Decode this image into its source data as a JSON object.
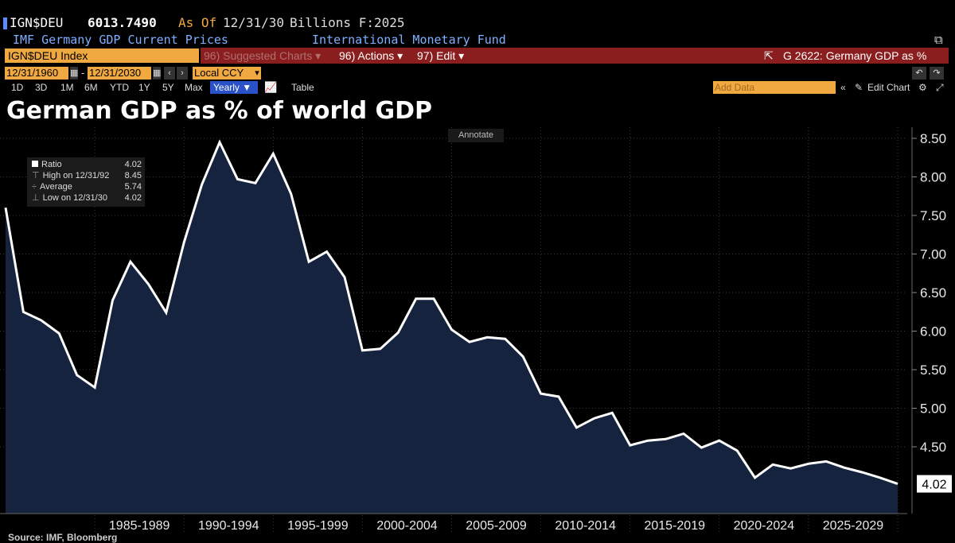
{
  "header": {
    "ticker": "IGN$DEU",
    "value": "6013.7490",
    "as_of_label": "As Of",
    "as_of_date": "12/31/30",
    "units": "Billions F:2025",
    "description": "IMF Germany GDP Current Prices",
    "source_name": "International Monetary Fund"
  },
  "toolbar": {
    "security": "IGN$DEU Index",
    "suggested": "96) Suggested Charts ▾",
    "actions": "96) Actions ▾",
    "edit": "97) Edit ▾",
    "chart_name": "G 2622: Germany GDP as %"
  },
  "dates": {
    "start": "12/31/1960",
    "end": "12/31/2030",
    "currency": "Local CCY"
  },
  "ranges": [
    "1D",
    "3D",
    "1M",
    "6M",
    "YTD",
    "1Y",
    "5Y",
    "Max"
  ],
  "period": "Yearly ▼",
  "table_label": "Table",
  "add_data": "Add Data",
  "edit_chart": "Edit Chart",
  "annotate": "Annotate",
  "legend": {
    "ratio_label": "Ratio",
    "ratio_value": "4.02",
    "high_label": "High on 12/31/92",
    "high_value": "8.45",
    "avg_label": "Average",
    "avg_value": "5.74",
    "low_label": "Low on 12/31/30",
    "low_value": "4.02"
  },
  "source": "Source: IMF, Bloomberg",
  "colors": {
    "line": "#ffffff",
    "area": "#15233e",
    "accent": "#f0a840",
    "redbar": "#8a1e1e"
  },
  "chart_data": {
    "type": "area",
    "title": "German GDP as % of world GDP",
    "x": [
      1980,
      1981,
      1982,
      1983,
      1984,
      1985,
      1986,
      1987,
      1988,
      1989,
      1990,
      1991,
      1992,
      1993,
      1994,
      1995,
      1996,
      1997,
      1998,
      1999,
      2000,
      2001,
      2002,
      2003,
      2004,
      2005,
      2006,
      2007,
      2008,
      2009,
      2010,
      2011,
      2012,
      2013,
      2014,
      2015,
      2016,
      2017,
      2018,
      2019,
      2020,
      2021,
      2022,
      2023,
      2024,
      2025,
      2026,
      2027,
      2028,
      2029,
      2030
    ],
    "values": [
      7.6,
      6.25,
      6.14,
      5.97,
      5.43,
      5.27,
      6.4,
      6.9,
      6.61,
      6.24,
      7.15,
      7.9,
      8.45,
      7.97,
      7.92,
      8.3,
      7.78,
      6.9,
      7.03,
      6.7,
      5.75,
      5.77,
      5.98,
      6.42,
      6.42,
      6.02,
      5.86,
      5.92,
      5.9,
      5.67,
      5.19,
      5.15,
      4.75,
      4.87,
      4.94,
      4.52,
      4.58,
      4.6,
      4.67,
      4.49,
      4.58,
      4.45,
      4.1,
      4.27,
      4.22,
      4.28,
      4.31,
      4.23,
      4.17,
      4.1,
      4.02
    ],
    "yticks": [
      "4.50",
      "5.00",
      "5.50",
      "6.00",
      "6.50",
      "7.00",
      "7.50",
      "8.00",
      "8.50"
    ],
    "ylim": [
      4.0,
      8.6
    ],
    "xlabels": [
      "1985-1989",
      "1990-1994",
      "1995-1999",
      "2000-2004",
      "2005-2009",
      "2010-2014",
      "2015-2019",
      "2020-2024",
      "2025-2029"
    ],
    "last_value_label": "4.02",
    "grid": true
  }
}
